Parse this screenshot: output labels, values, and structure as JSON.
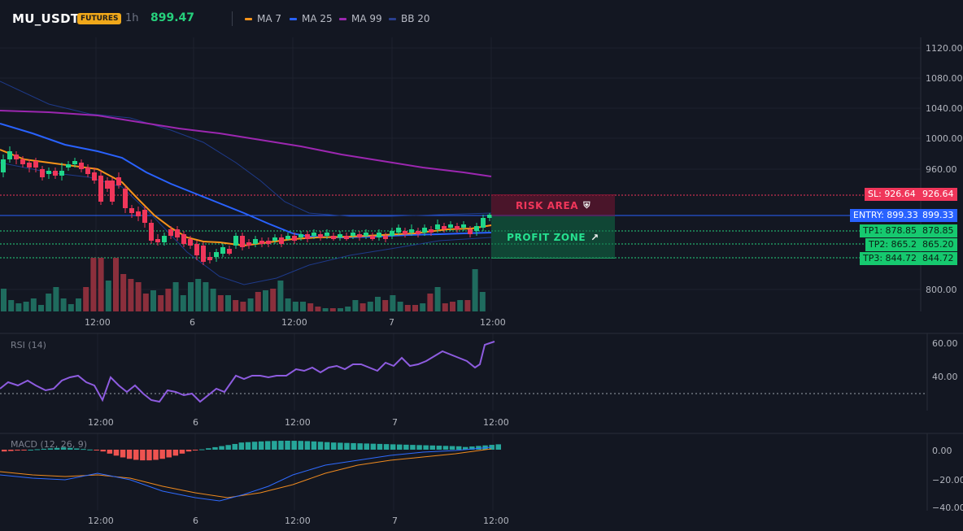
{
  "header": {
    "symbol": "MU_USDT",
    "badge": "FUTURES",
    "timeframe": "1h",
    "last_price": "899.47",
    "legend": [
      {
        "label": "MA 7",
        "color": "#f7931a"
      },
      {
        "label": "MA 25",
        "color": "#2962ff"
      },
      {
        "label": "MA 99",
        "color": "#9c27b0"
      },
      {
        "label": "BB 20",
        "color": "#1e3a8a"
      }
    ]
  },
  "price_axis": [
    "1120.00",
    "1080.00",
    "1040.00",
    "1000.00",
    "960.00",
    "800.00"
  ],
  "time_axis": [
    "12:00",
    "6",
    "12:00",
    "7",
    "12:00"
  ],
  "levels": {
    "sl": {
      "label": "SL: 926.64",
      "value": "926.64",
      "color": "#f23645"
    },
    "entry": {
      "label": "ENTRY: 899.33",
      "value": "899.33",
      "color": "#2962ff"
    },
    "tp1": {
      "label": "TP1: 878.85",
      "value": "878.85",
      "color": "#26d07c"
    },
    "tp2": {
      "label": "TP2: 865.2",
      "value": "865.20",
      "color": "#26d07c"
    },
    "tp3": {
      "label": "TP3: 844.72",
      "value": "844.72",
      "color": "#26d07c"
    }
  },
  "zones": {
    "risk": {
      "label": "RISK AREA",
      "icon": "shield-icon"
    },
    "profit": {
      "label": "PROFIT ZONE",
      "icon": "rocket-icon"
    }
  },
  "rsi": {
    "title": "RSI (14)",
    "axis": [
      "60.00",
      "40.00"
    ]
  },
  "macd": {
    "title": "MACD (12, 26, 9)",
    "axis": [
      "0.00",
      "−20.00",
      "−40.00"
    ]
  },
  "colors": {
    "bg": "#131722",
    "up": "#26a69a",
    "down": "#ef5350",
    "up_bright": "#1fd68a",
    "down_bright": "#f0365a"
  }
}
